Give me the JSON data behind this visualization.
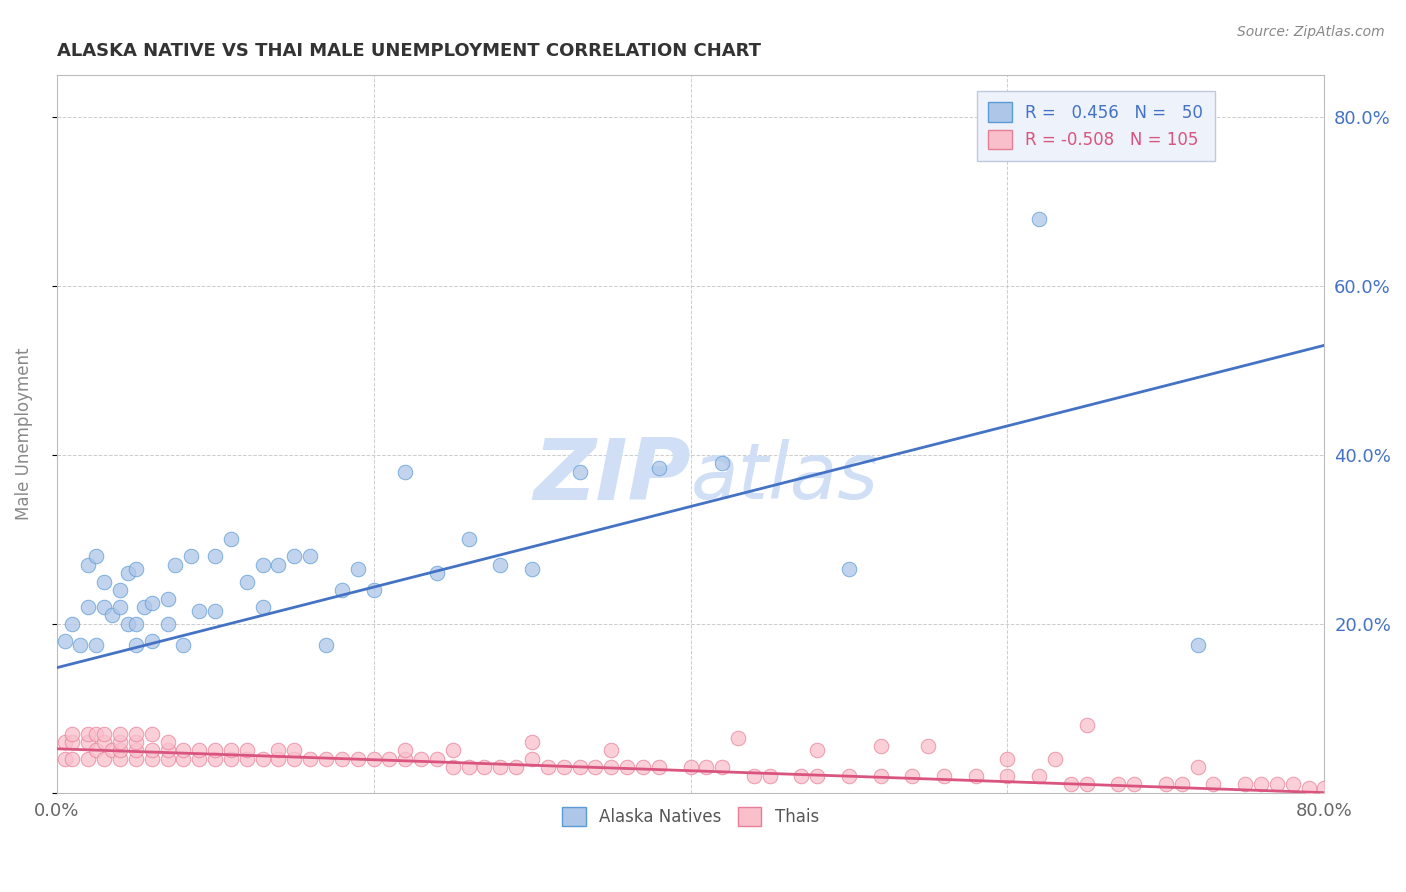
{
  "title": "ALASKA NATIVE VS THAI MALE UNEMPLOYMENT CORRELATION CHART",
  "source": "Source: ZipAtlas.com",
  "ylabel": "Male Unemployment",
  "xlim": [
    0.0,
    0.8
  ],
  "ylim": [
    0.0,
    0.85
  ],
  "alaska_R": 0.456,
  "alaska_N": 50,
  "thai_R": -0.508,
  "thai_N": 105,
  "alaska_color": "#aec6e8",
  "alaska_edge_color": "#5b9bd5",
  "alaska_line_color": "#4472c4",
  "thai_color": "#f9c0cc",
  "thai_edge_color": "#e87d96",
  "thai_line_color": "#d9547e",
  "legend_bg_color": "#eef2fb",
  "legend_edge_color": "#c0c8e0",
  "background_color": "#ffffff",
  "grid_color": "#c8c8c8",
  "ytick_color": "#4472c4",
  "ylabel_color": "#888888",
  "title_color": "#333333",
  "source_color": "#888888",
  "watermark_color": "#d0dff5",
  "alaska_line_x": [
    0.0,
    0.8
  ],
  "alaska_line_y": [
    0.148,
    0.53
  ],
  "thai_line_x": [
    0.0,
    0.8
  ],
  "thai_line_y": [
    0.052,
    0.0
  ],
  "alaska_scatter_x": [
    0.005,
    0.01,
    0.015,
    0.02,
    0.02,
    0.025,
    0.025,
    0.03,
    0.03,
    0.035,
    0.04,
    0.04,
    0.045,
    0.045,
    0.05,
    0.05,
    0.05,
    0.055,
    0.06,
    0.06,
    0.07,
    0.07,
    0.075,
    0.08,
    0.085,
    0.09,
    0.1,
    0.1,
    0.11,
    0.12,
    0.13,
    0.13,
    0.14,
    0.15,
    0.16,
    0.17,
    0.18,
    0.19,
    0.2,
    0.22,
    0.24,
    0.26,
    0.28,
    0.3,
    0.33,
    0.38,
    0.42,
    0.5,
    0.62,
    0.72
  ],
  "alaska_scatter_y": [
    0.18,
    0.2,
    0.175,
    0.22,
    0.27,
    0.175,
    0.28,
    0.22,
    0.25,
    0.21,
    0.22,
    0.24,
    0.2,
    0.26,
    0.175,
    0.2,
    0.265,
    0.22,
    0.18,
    0.225,
    0.2,
    0.23,
    0.27,
    0.175,
    0.28,
    0.215,
    0.215,
    0.28,
    0.3,
    0.25,
    0.22,
    0.27,
    0.27,
    0.28,
    0.28,
    0.175,
    0.24,
    0.265,
    0.24,
    0.38,
    0.26,
    0.3,
    0.27,
    0.265,
    0.38,
    0.385,
    0.39,
    0.265,
    0.68,
    0.175
  ],
  "thai_scatter_x": [
    0.005,
    0.005,
    0.01,
    0.01,
    0.01,
    0.02,
    0.02,
    0.02,
    0.025,
    0.025,
    0.03,
    0.03,
    0.03,
    0.035,
    0.04,
    0.04,
    0.04,
    0.04,
    0.05,
    0.05,
    0.05,
    0.05,
    0.06,
    0.06,
    0.06,
    0.07,
    0.07,
    0.07,
    0.08,
    0.08,
    0.09,
    0.09,
    0.1,
    0.1,
    0.11,
    0.11,
    0.12,
    0.12,
    0.13,
    0.14,
    0.14,
    0.15,
    0.15,
    0.16,
    0.17,
    0.18,
    0.19,
    0.2,
    0.21,
    0.22,
    0.22,
    0.23,
    0.24,
    0.25,
    0.25,
    0.26,
    0.27,
    0.28,
    0.29,
    0.3,
    0.31,
    0.32,
    0.33,
    0.34,
    0.35,
    0.36,
    0.37,
    0.38,
    0.4,
    0.41,
    0.42,
    0.44,
    0.45,
    0.47,
    0.48,
    0.5,
    0.52,
    0.54,
    0.56,
    0.58,
    0.6,
    0.62,
    0.64,
    0.65,
    0.67,
    0.68,
    0.7,
    0.71,
    0.73,
    0.75,
    0.76,
    0.77,
    0.78,
    0.79,
    0.8,
    0.3,
    0.35,
    0.43,
    0.48,
    0.52,
    0.55,
    0.6,
    0.63,
    0.65,
    0.72
  ],
  "thai_scatter_y": [
    0.04,
    0.06,
    0.04,
    0.06,
    0.07,
    0.04,
    0.06,
    0.07,
    0.05,
    0.07,
    0.04,
    0.06,
    0.07,
    0.05,
    0.04,
    0.05,
    0.06,
    0.07,
    0.04,
    0.05,
    0.06,
    0.07,
    0.04,
    0.05,
    0.07,
    0.04,
    0.05,
    0.06,
    0.04,
    0.05,
    0.04,
    0.05,
    0.04,
    0.05,
    0.04,
    0.05,
    0.04,
    0.05,
    0.04,
    0.04,
    0.05,
    0.04,
    0.05,
    0.04,
    0.04,
    0.04,
    0.04,
    0.04,
    0.04,
    0.04,
    0.05,
    0.04,
    0.04,
    0.03,
    0.05,
    0.03,
    0.03,
    0.03,
    0.03,
    0.04,
    0.03,
    0.03,
    0.03,
    0.03,
    0.03,
    0.03,
    0.03,
    0.03,
    0.03,
    0.03,
    0.03,
    0.02,
    0.02,
    0.02,
    0.02,
    0.02,
    0.02,
    0.02,
    0.02,
    0.02,
    0.02,
    0.02,
    0.01,
    0.01,
    0.01,
    0.01,
    0.01,
    0.01,
    0.01,
    0.01,
    0.01,
    0.01,
    0.01,
    0.005,
    0.005,
    0.06,
    0.05,
    0.065,
    0.05,
    0.055,
    0.055,
    0.04,
    0.04,
    0.08,
    0.03
  ]
}
